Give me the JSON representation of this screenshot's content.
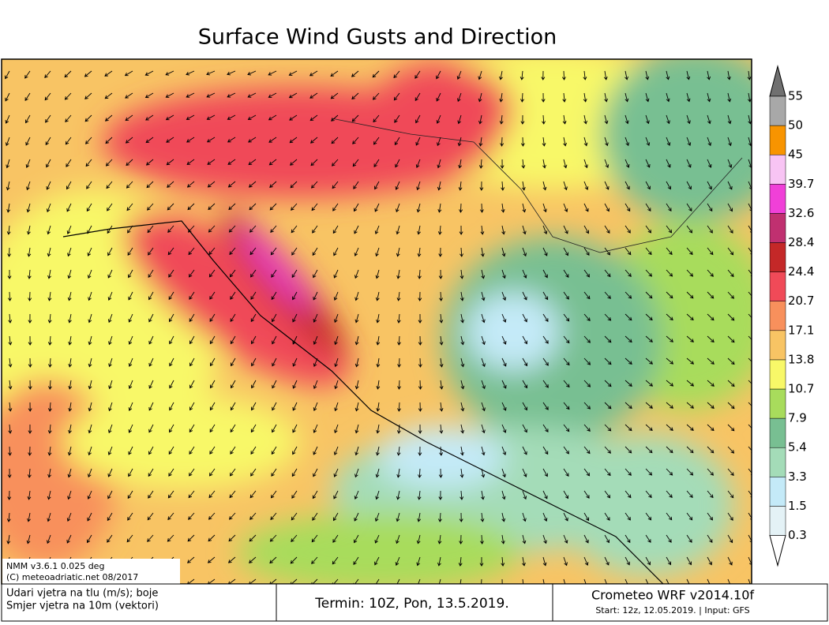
{
  "header": {
    "title": "Surface Wind Gusts and Direction"
  },
  "legend": {
    "levels": [
      0.3,
      1.5,
      3.3,
      5.4,
      7.9,
      10.7,
      13.8,
      17.1,
      20.7,
      24.4,
      28.4,
      32.6,
      39.7,
      45,
      50,
      55
    ],
    "colors": [
      "#ffffff",
      "#e4f2f6",
      "#c4eaf8",
      "#a4dcb8",
      "#78bf92",
      "#a8dc5c",
      "#f8f868",
      "#f8c464",
      "#f8905c",
      "#f04a58",
      "#c42828",
      "#c03070",
      "#f040d8",
      "#f8c4f4",
      "#f89400",
      "#a8a8a8",
      "#707070"
    ]
  },
  "inset": {
    "line1": "NMM v3.6.1 0.025 deg",
    "line2": "(C) meteoadriatic.net 08/2017"
  },
  "footer": {
    "left1": "Udari vjetra na tlu (m/s); boje",
    "left2": "Smjer vjetra na 10m (vektori)",
    "middle": "Termin: 10Z, Pon, 13.5.2019.",
    "right1": "Crometeo WRF v2014.10f",
    "right2": "Start: 12z, 12.05.2019. | Input: GFS"
  }
}
